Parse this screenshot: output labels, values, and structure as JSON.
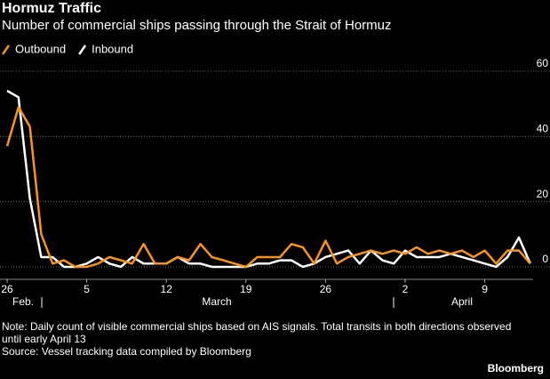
{
  "chart_data": {
    "type": "line",
    "title": "Hormuz Traffic",
    "subtitle": "Number of commercial ships passing through the Strait of Hormuz",
    "categories": [
      "26",
      null,
      null,
      null,
      null,
      null,
      null,
      "5",
      null,
      null,
      null,
      null,
      null,
      null,
      "12",
      null,
      null,
      null,
      null,
      null,
      null,
      "19",
      null,
      null,
      null,
      null,
      null,
      null,
      "26",
      null,
      null,
      null,
      null,
      null,
      null,
      "2",
      null,
      null,
      null,
      null,
      null,
      null,
      "9",
      null,
      null,
      null,
      null
    ],
    "month_labels": [
      "Feb.",
      "March",
      "April"
    ],
    "series": [
      {
        "name": "Outbound",
        "color": "#f7941d",
        "values": [
          37,
          49,
          43,
          10,
          1,
          2,
          0,
          0,
          1,
          3,
          2,
          1,
          7,
          1,
          1,
          3,
          2,
          7,
          3,
          2,
          1,
          0,
          3,
          3,
          3,
          7,
          6,
          1,
          8,
          1,
          3,
          4,
          5,
          4,
          5,
          4,
          6,
          4,
          5,
          4,
          5,
          3,
          5,
          1,
          5,
          5,
          1
        ]
      },
      {
        "name": "Inbound",
        "color": "#ffffff",
        "values": [
          54,
          52,
          21,
          3,
          3,
          0,
          0,
          1,
          3,
          1,
          0,
          3,
          1,
          1,
          1,
          3,
          1,
          1,
          0,
          0,
          0,
          0,
          1,
          1,
          2,
          2,
          0,
          1,
          3,
          4,
          5,
          1,
          5,
          2,
          1,
          5,
          3,
          3,
          3,
          4,
          3,
          2,
          1,
          0,
          3,
          9,
          1
        ]
      }
    ],
    "ylim": [
      -4,
      60
    ],
    "yticks": [
      0,
      20,
      40,
      60
    ],
    "grid": true,
    "legend": "top-left",
    "note": "Note: Daily count of visible commercial ships based on AIS signals. Total transits in both directions observed until early April 13",
    "source": "Source: Vessel tracking data compiled by Bloomberg",
    "brand": "Bloomberg"
  }
}
